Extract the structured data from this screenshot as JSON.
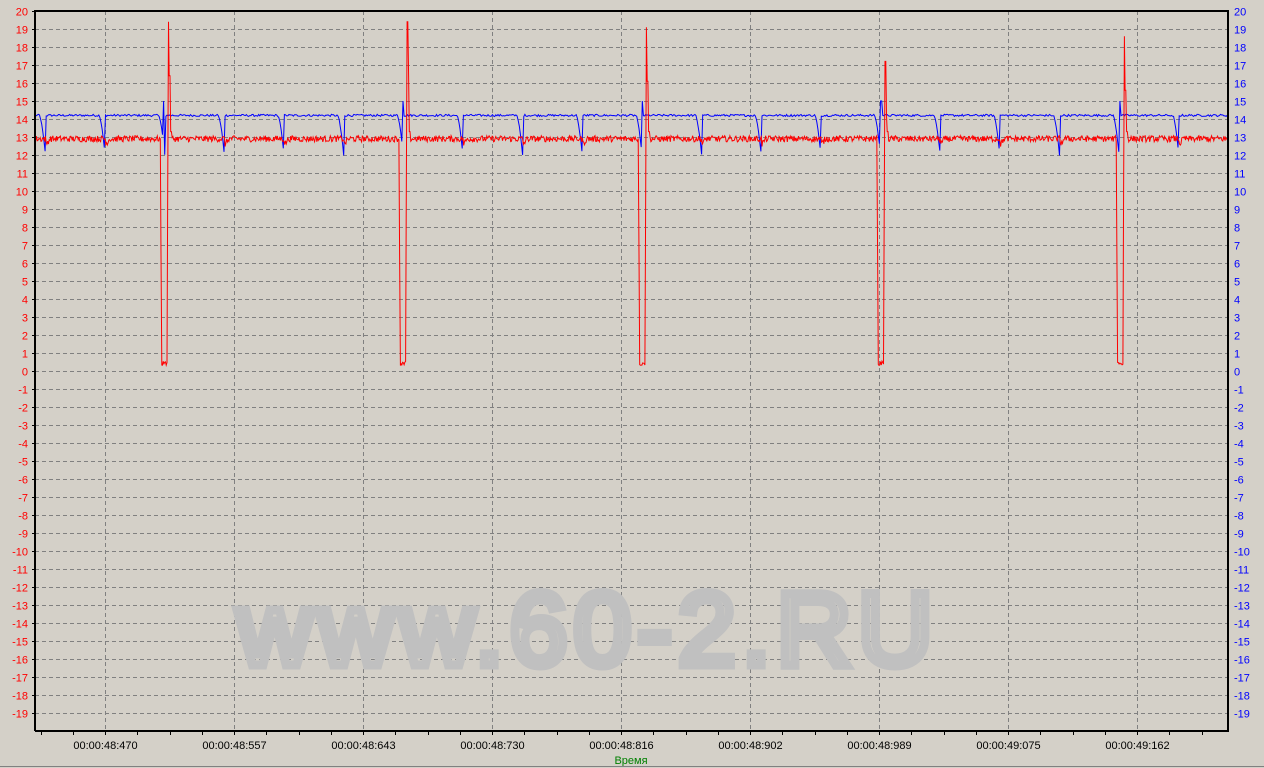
{
  "chart_data": {
    "type": "line",
    "xlabel": "Время",
    "xlabel_color": "#008000",
    "x_unit": "ms (displayed as 00:00:SS:mmm)",
    "xlim": [
      48423,
      49223
    ],
    "ylim": [
      -20,
      20
    ],
    "y_ticks": [
      20,
      19,
      18,
      17,
      16,
      15,
      14,
      13,
      12,
      11,
      10,
      9,
      8,
      7,
      6,
      5,
      4,
      3,
      2,
      1,
      0,
      -1,
      -2,
      -3,
      -4,
      -5,
      -6,
      -7,
      -8,
      -9,
      -10,
      -11,
      -12,
      -13,
      -14,
      -15,
      -16,
      -17,
      -18,
      -19
    ],
    "x_tick_labels": [
      "00:00:48:470",
      "00:00:48:557",
      "00:00:48:643",
      "00:00:48:730",
      "00:00:48:816",
      "00:00:48:902",
      "00:00:48:989",
      "00:00:49:075",
      "00:00:49:162"
    ],
    "x_tick_values": [
      48470,
      48556.5,
      48643,
      48729.5,
      48816,
      48902.5,
      48989,
      49075.5,
      49162
    ],
    "grid": true,
    "background": "#d4d0c8",
    "series": [
      {
        "axis": "left",
        "color": "#ff0000",
        "baseline": 12.9,
        "events": [
          {
            "t": 48507.5,
            "low": 0.3,
            "peak": 19.4
          },
          {
            "t": 48667.8,
            "low": 0.3,
            "peak": 19.4
          },
          {
            "t": 48828.1,
            "low": 0.3,
            "peak": 19.1
          },
          {
            "t": 48988.3,
            "low": 0.3,
            "peak": 17.2
          },
          {
            "t": 49148.6,
            "low": 0.3,
            "peak": 18.6
          }
        ]
      },
      {
        "axis": "right",
        "color": "#0000ff",
        "baseline": 14.2,
        "dip_min": 12.0,
        "event_overshoot": 15.0,
        "dips": [
          48430,
          48470,
          48510,
          48550,
          48590,
          48630,
          48670,
          48710,
          48750,
          48790,
          48830,
          48870,
          48910,
          48950,
          48990,
          49030,
          49070,
          49110,
          49150,
          49190
        ]
      }
    ]
  },
  "watermark": "www.60-2.RU"
}
